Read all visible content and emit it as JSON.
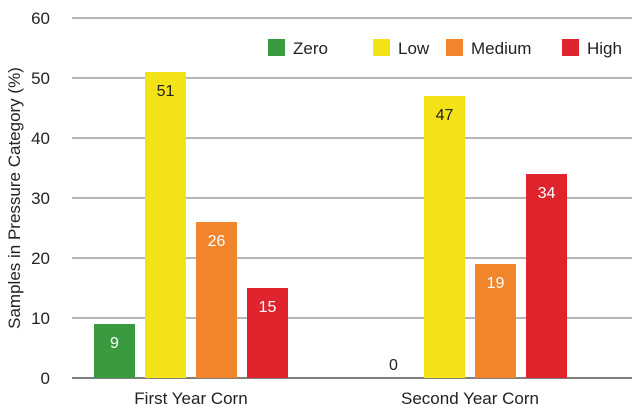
{
  "chart_data": {
    "type": "bar",
    "title": "",
    "xlabel": "",
    "ylabel": "Samples in Pressure Category (%)",
    "ylim": [
      0,
      60
    ],
    "yticks": [
      0,
      10,
      20,
      30,
      40,
      50,
      60
    ],
    "grid": true,
    "legend": "top-right",
    "categories": [
      "First Year Corn",
      "Second Year Corn"
    ],
    "series": [
      {
        "name": "Zero",
        "color": "#3a9a3f",
        "label_color": "#ffffff",
        "values": [
          9,
          0
        ],
        "labels": [
          "9",
          "0"
        ]
      },
      {
        "name": "Low",
        "color": "#f3e216",
        "label_color": "#222222",
        "values": [
          51,
          47
        ],
        "labels": [
          "51",
          "47"
        ]
      },
      {
        "name": "Medium",
        "color": "#f0852b",
        "label_color": "#ffffff",
        "values": [
          26,
          19
        ],
        "labels": [
          "26",
          "19"
        ]
      },
      {
        "name": "High",
        "color": "#e0242e",
        "label_color": "#ffffff",
        "values": [
          15,
          34
        ],
        "labels": [
          "15",
          "34"
        ]
      }
    ]
  }
}
